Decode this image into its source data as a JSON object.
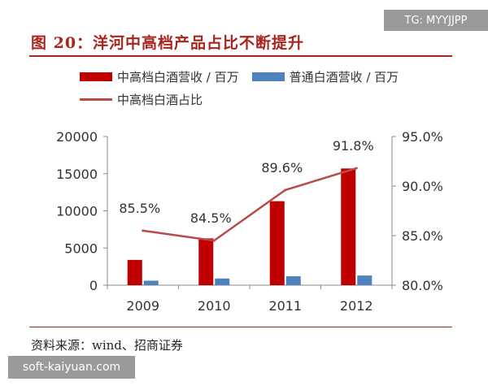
{
  "header": {
    "title": "图 20：洋河中高档产品占比不断提升"
  },
  "footer": {
    "source": "资料来源：wind、招商证券"
  },
  "watermarks": {
    "top": "TG: MYYJJPP",
    "bottom": "soft-kaiyuan.com"
  },
  "colors": {
    "red": "#c00000",
    "blue": "#4f81bd",
    "line": "#b94a48",
    "accent": "#a8251f"
  },
  "chart_data": {
    "type": "bar",
    "title": "洋河中高档产品占比不断提升",
    "categories": [
      "2009",
      "2010",
      "2011",
      "2012"
    ],
    "series": [
      {
        "name": "中高档白酒营收 / 百万",
        "type": "bar",
        "axis": "left",
        "values": [
          3400,
          6300,
          11300,
          15700
        ]
      },
      {
        "name": "普通白酒营收 / 百万",
        "type": "bar",
        "axis": "left",
        "values": [
          600,
          900,
          1200,
          1300
        ]
      },
      {
        "name": "中高档白酒占比",
        "type": "line",
        "axis": "right",
        "values": [
          85.5,
          84.5,
          89.6,
          91.8
        ],
        "labels": [
          "85.5%",
          "84.5%",
          "89.6%",
          "91.8%"
        ]
      }
    ],
    "y_left": {
      "range": [
        0,
        20000
      ],
      "ticks": [
        "0",
        "5000",
        "10000",
        "15000",
        "20000"
      ]
    },
    "y_right": {
      "range": [
        80,
        95
      ],
      "ticks": [
        "80.0%",
        "85.0%",
        "90.0%",
        "95.0%"
      ]
    },
    "grid": false,
    "legend_position": "top"
  }
}
